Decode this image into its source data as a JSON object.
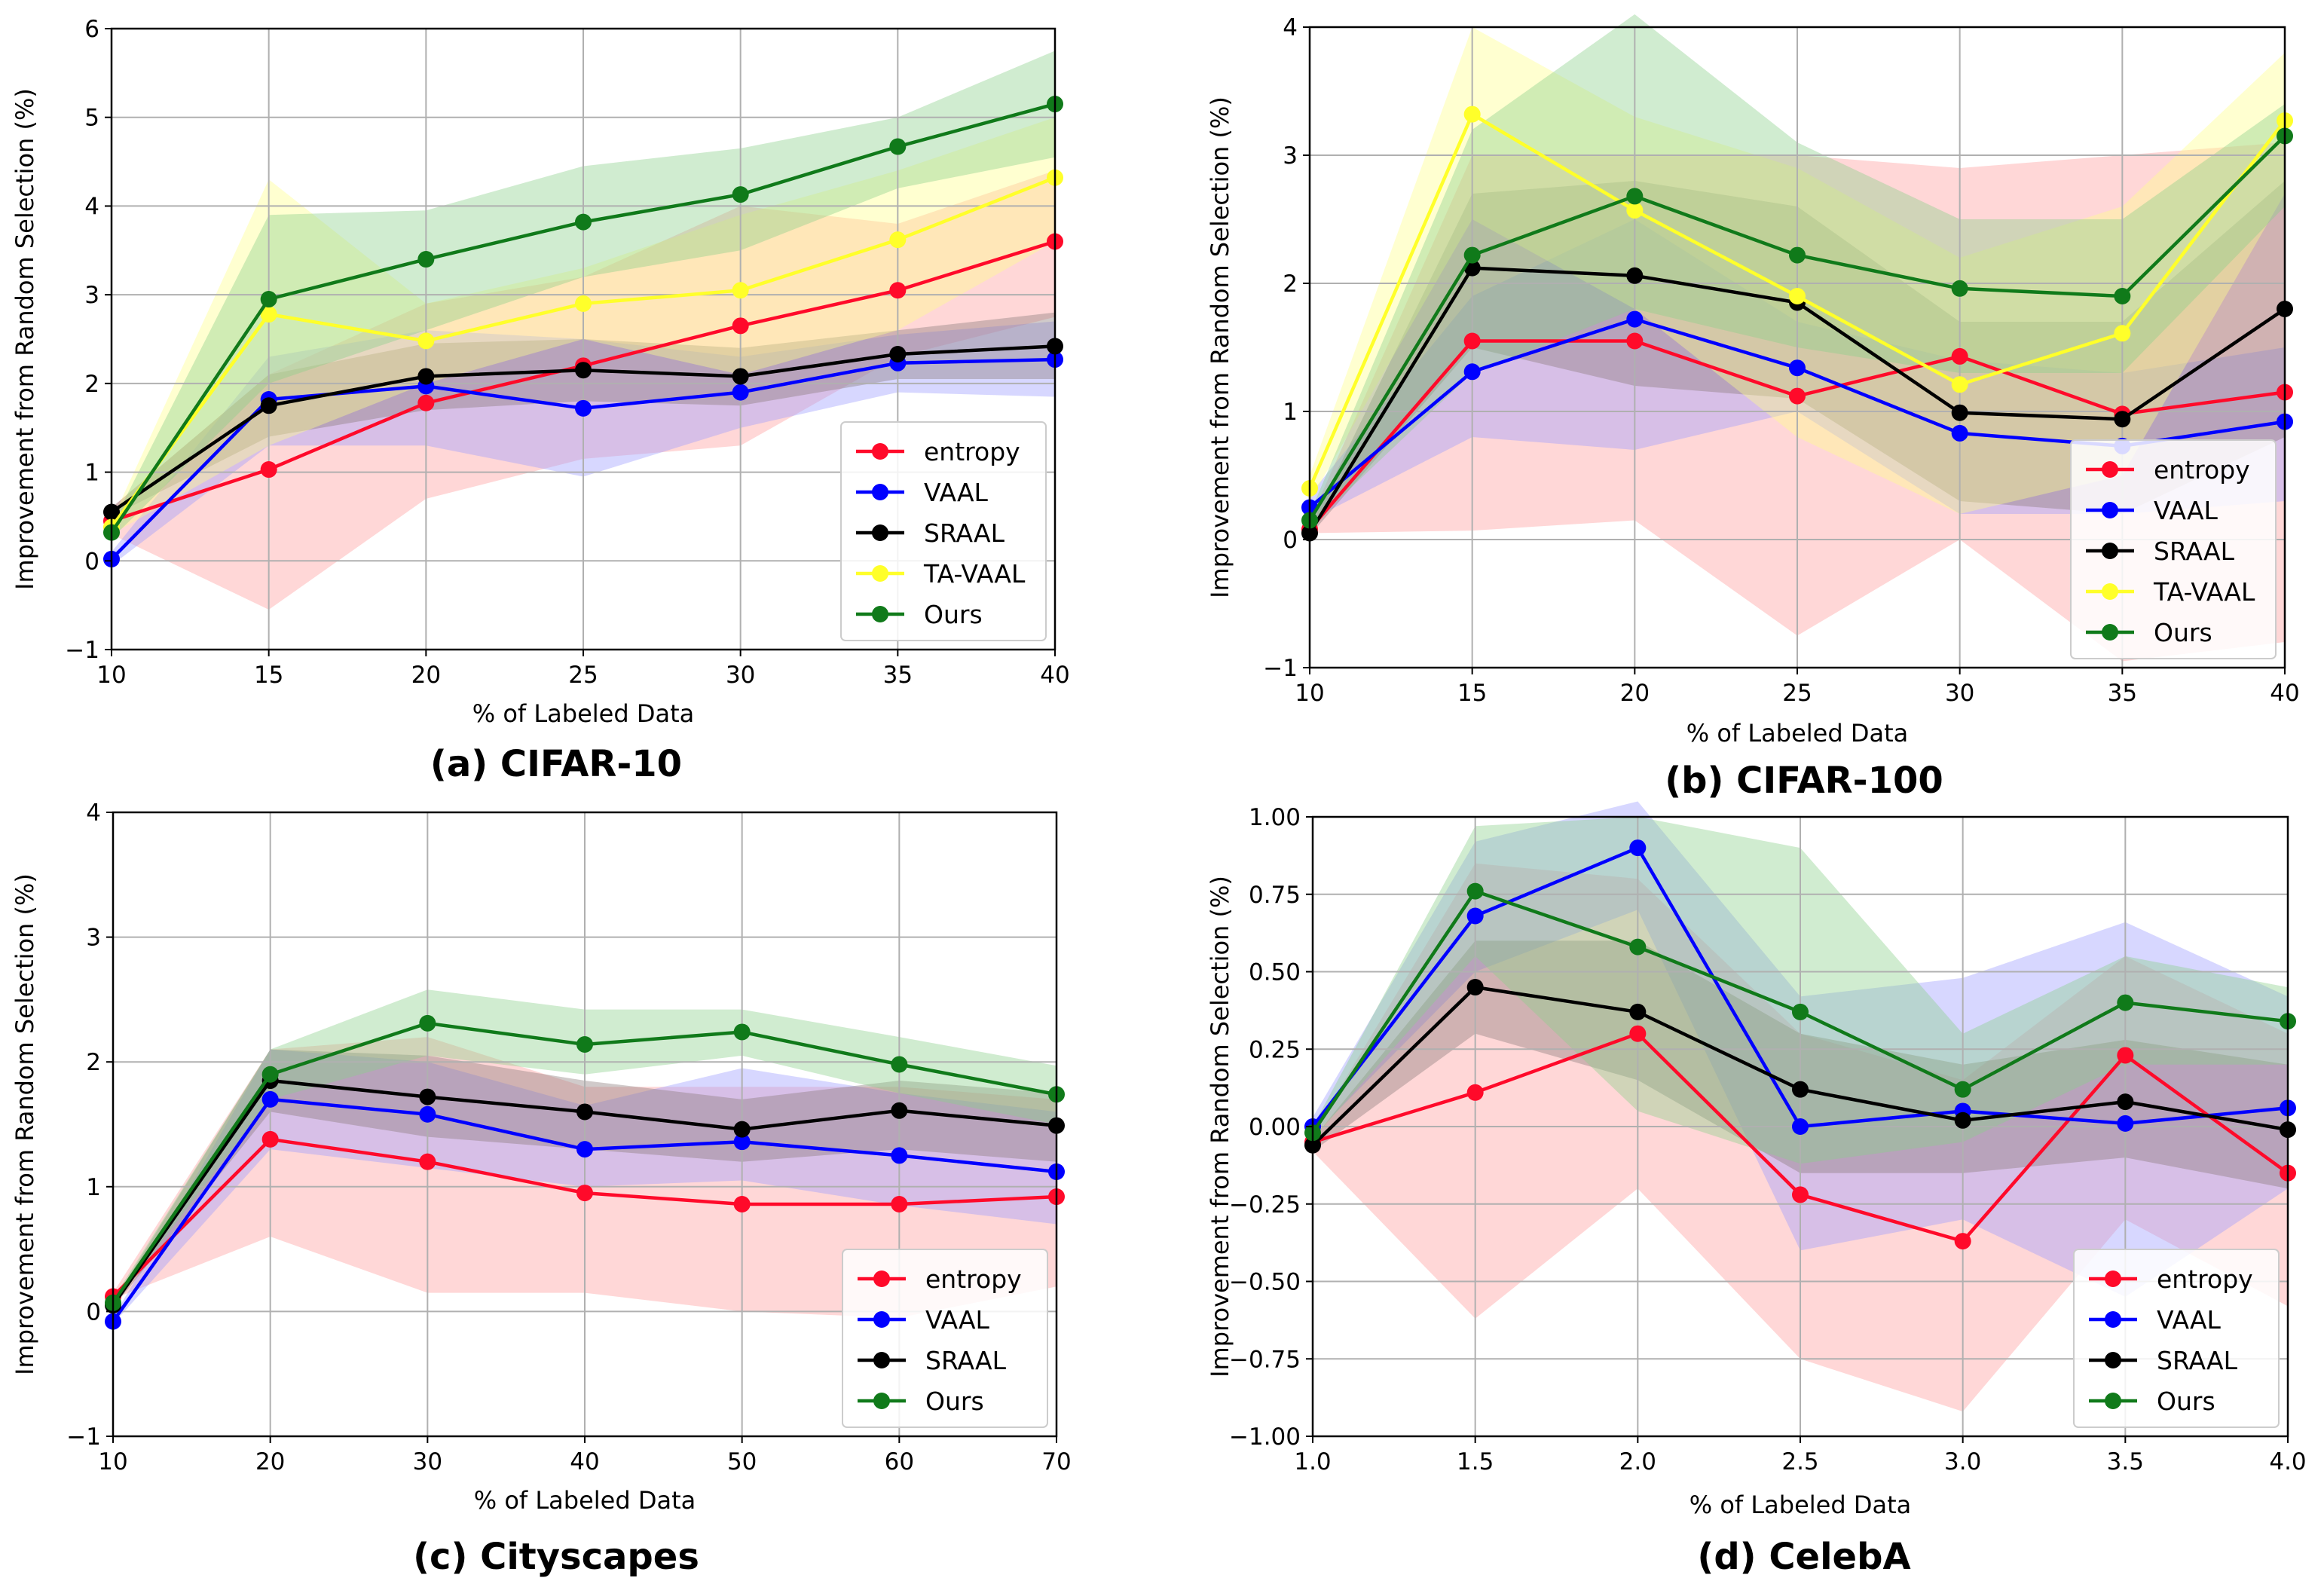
{
  "chart_data": [
    {
      "type": "line",
      "caption": "(a) CIFAR-10",
      "xlabel": "% of Labeled Data",
      "ylabel": "Improvement from Random Selection (%)",
      "x": [
        10,
        15,
        20,
        25,
        30,
        35,
        40
      ],
      "x_ticks": [
        "10",
        "15",
        "20",
        "25",
        "30",
        "35",
        "40"
      ],
      "xlim": [
        10,
        40
      ],
      "y_ticks": [
        "−1",
        "0",
        "1",
        "2",
        "3",
        "4",
        "5",
        "6"
      ],
      "ylim": [
        -1,
        6
      ],
      "grid": true,
      "legend_position": "lower-right",
      "series": [
        {
          "name": "entropy",
          "color": "#ff0a2a",
          "band_color": "#ff9a9a",
          "values": [
            0.45,
            1.03,
            1.78,
            2.2,
            2.65,
            3.05,
            3.6
          ],
          "lower": [
            0.3,
            -0.55,
            0.7,
            1.15,
            1.3,
            2.3,
            2.75
          ],
          "upper": [
            0.6,
            2.1,
            2.9,
            3.2,
            4.0,
            3.8,
            4.4
          ]
        },
        {
          "name": "VAAL",
          "color": "#0000ff",
          "band_color": "#9a9aff",
          "values": [
            0.02,
            1.82,
            1.97,
            1.72,
            1.9,
            2.23,
            2.27
          ],
          "lower": [
            -0.05,
            1.3,
            1.3,
            0.95,
            1.5,
            1.9,
            1.85
          ],
          "upper": [
            0.1,
            2.3,
            2.6,
            2.5,
            2.3,
            2.55,
            2.7
          ]
        },
        {
          "name": "SRAAL",
          "color": "#000000",
          "band_color": "#8a7a7a",
          "values": [
            0.55,
            1.75,
            2.08,
            2.15,
            2.08,
            2.33,
            2.42
          ],
          "lower": [
            0.5,
            1.4,
            1.7,
            1.8,
            1.75,
            2.05,
            2.05
          ],
          "upper": [
            0.6,
            2.1,
            2.45,
            2.5,
            2.4,
            2.6,
            2.8
          ]
        },
        {
          "name": "TA-VAAL",
          "color": "#ffff2a",
          "band_color": "#ffff8a",
          "values": [
            0.38,
            2.78,
            2.48,
            2.9,
            3.05,
            3.62,
            4.32
          ],
          "lower": [
            0.3,
            1.3,
            2.0,
            2.5,
            2.1,
            2.6,
            3.6
          ],
          "upper": [
            0.45,
            4.3,
            2.9,
            3.3,
            3.9,
            4.4,
            5.0
          ]
        },
        {
          "name": "Ours",
          "color": "#107a1a",
          "band_color": "#8ad08a",
          "values": [
            0.32,
            2.95,
            3.4,
            3.82,
            4.13,
            4.67,
            5.15
          ],
          "lower": [
            0.25,
            2.0,
            2.6,
            3.2,
            3.5,
            4.2,
            4.55
          ],
          "upper": [
            0.4,
            3.9,
            3.95,
            4.45,
            4.65,
            5.0,
            5.75
          ]
        }
      ]
    },
    {
      "type": "line",
      "caption": "(b) CIFAR-100",
      "xlabel": "% of Labeled Data",
      "ylabel": "Improvement from Random Selection (%)",
      "x": [
        10,
        15,
        20,
        25,
        30,
        35,
        40
      ],
      "x_ticks": [
        "10",
        "15",
        "20",
        "25",
        "30",
        "35",
        "40"
      ],
      "xlim": [
        10,
        40
      ],
      "y_ticks": [
        "−1",
        "0",
        "1",
        "2",
        "3",
        "4"
      ],
      "ylim": [
        -1,
        4
      ],
      "grid": true,
      "legend_position": "lower-right",
      "series": [
        {
          "name": "entropy",
          "color": "#ff0a2a",
          "band_color": "#ff9a9a",
          "values": [
            0.08,
            1.55,
            1.55,
            1.12,
            1.43,
            0.98,
            1.15
          ],
          "lower": [
            0.05,
            0.07,
            0.15,
            -0.75,
            0.0,
            -0.95,
            -0.8
          ],
          "upper": [
            0.15,
            3.0,
            3.0,
            3.0,
            2.9,
            3.0,
            3.1
          ]
        },
        {
          "name": "VAAL",
          "color": "#0000ff",
          "band_color": "#9a9aff",
          "values": [
            0.25,
            1.31,
            1.72,
            1.34,
            0.83,
            0.73,
            0.92
          ],
          "lower": [
            0.15,
            0.8,
            0.7,
            1.0,
            0.2,
            0.2,
            0.3
          ],
          "upper": [
            0.35,
            1.9,
            2.5,
            1.7,
            1.4,
            1.3,
            1.5
          ]
        },
        {
          "name": "SRAAL",
          "color": "#000000",
          "band_color": "#8a7a7a",
          "values": [
            0.05,
            2.12,
            2.06,
            1.85,
            0.99,
            0.94,
            1.8
          ],
          "lower": [
            0.03,
            1.5,
            1.2,
            1.1,
            0.3,
            0.2,
            0.8
          ],
          "upper": [
            0.1,
            2.7,
            2.8,
            2.6,
            1.7,
            1.7,
            2.8
          ]
        },
        {
          "name": "TA-VAAL",
          "color": "#ffff2a",
          "band_color": "#ffff8a",
          "values": [
            0.4,
            3.32,
            2.57,
            1.9,
            1.21,
            1.61,
            3.27
          ],
          "lower": [
            0.3,
            2.5,
            1.8,
            0.8,
            0.2,
            0.5,
            2.7
          ],
          "upper": [
            0.5,
            4.0,
            3.3,
            2.9,
            2.2,
            2.6,
            3.8
          ]
        },
        {
          "name": "Ours",
          "color": "#107a1a",
          "band_color": "#8ad08a",
          "values": [
            0.15,
            2.22,
            2.68,
            2.22,
            1.96,
            1.9,
            3.15
          ],
          "lower": [
            0.1,
            1.3,
            1.8,
            1.5,
            1.3,
            1.3,
            2.6
          ],
          "upper": [
            0.2,
            3.2,
            4.1,
            3.1,
            2.5,
            2.5,
            3.4
          ]
        }
      ]
    },
    {
      "type": "line",
      "caption": "(c) Cityscapes",
      "xlabel": "% of Labeled Data",
      "ylabel": "Improvement from Random Selection (%)",
      "x": [
        10,
        20,
        30,
        40,
        50,
        60,
        70
      ],
      "x_ticks": [
        "10",
        "20",
        "30",
        "40",
        "50",
        "60",
        "70"
      ],
      "xlim": [
        10,
        70
      ],
      "y_ticks": [
        "−1",
        "0",
        "1",
        "2",
        "3",
        "4"
      ],
      "ylim": [
        -1,
        4
      ],
      "grid": true,
      "legend_position": "lower-right",
      "series": [
        {
          "name": "entropy",
          "color": "#ff0a2a",
          "band_color": "#ff9a9a",
          "values": [
            0.12,
            1.38,
            1.2,
            0.95,
            0.86,
            0.86,
            0.92
          ],
          "lower": [
            0.1,
            0.6,
            0.15,
            0.15,
            0.0,
            -0.05,
            0.2
          ],
          "upper": [
            0.15,
            2.1,
            2.2,
            1.8,
            1.8,
            1.8,
            1.7
          ]
        },
        {
          "name": "VAAL",
          "color": "#0000ff",
          "band_color": "#9a9aff",
          "values": [
            -0.08,
            1.7,
            1.58,
            1.3,
            1.36,
            1.25,
            1.12
          ],
          "lower": [
            -0.1,
            1.3,
            1.15,
            1.0,
            1.05,
            0.85,
            0.7
          ],
          "upper": [
            -0.05,
            2.1,
            2.0,
            1.65,
            1.95,
            1.75,
            1.6
          ]
        },
        {
          "name": "SRAAL",
          "color": "#000000",
          "band_color": "#8a7a7a",
          "values": [
            0.05,
            1.85,
            1.72,
            1.6,
            1.46,
            1.61,
            1.49
          ],
          "lower": [
            0.03,
            1.6,
            1.4,
            1.3,
            1.2,
            1.3,
            1.2
          ],
          "upper": [
            0.08,
            2.1,
            2.05,
            1.85,
            1.7,
            1.85,
            1.75
          ]
        },
        {
          "name": "Ours",
          "color": "#107a1a",
          "band_color": "#8ad08a",
          "values": [
            0.07,
            1.9,
            2.31,
            2.14,
            2.24,
            1.98,
            1.74
          ],
          "lower": [
            0.05,
            1.7,
            2.05,
            1.9,
            2.05,
            1.75,
            1.5
          ],
          "upper": [
            0.1,
            2.1,
            2.58,
            2.42,
            2.42,
            2.2,
            1.97
          ]
        }
      ]
    },
    {
      "type": "line",
      "caption": "(d) CelebA",
      "xlabel": "% of Labeled Data",
      "ylabel": "Improvement from Random Selection (%)",
      "x": [
        1.0,
        1.5,
        2.0,
        2.5,
        3.0,
        3.5,
        4.0
      ],
      "x_ticks": [
        "1.0",
        "1.5",
        "2.0",
        "2.5",
        "3.0",
        "3.5",
        "4.0"
      ],
      "xlim": [
        1.0,
        4.0
      ],
      "y_ticks": [
        "−1.00",
        "−0.75",
        "−0.50",
        "−0.25",
        "0.00",
        "0.25",
        "0.50",
        "0.75",
        "1.00"
      ],
      "ylim": [
        -1.0,
        1.0
      ],
      "grid": true,
      "legend_position": "lower-right",
      "series": [
        {
          "name": "entropy",
          "color": "#ff0a2a",
          "band_color": "#ff9a9a",
          "values": [
            -0.05,
            0.11,
            0.3,
            -0.22,
            -0.37,
            0.23,
            -0.15
          ],
          "lower": [
            -0.08,
            -0.62,
            -0.2,
            -0.75,
            -0.92,
            -0.3,
            -0.58
          ],
          "upper": [
            -0.02,
            0.85,
            0.8,
            0.3,
            0.15,
            0.55,
            0.3
          ]
        },
        {
          "name": "VAAL",
          "color": "#0000ff",
          "band_color": "#9a9aff",
          "values": [
            0.0,
            0.68,
            0.9,
            0.0,
            0.05,
            0.01,
            0.06
          ],
          "lower": [
            -0.03,
            0.5,
            0.7,
            -0.4,
            -0.3,
            -0.55,
            -0.2
          ],
          "upper": [
            0.03,
            0.92,
            1.05,
            0.42,
            0.48,
            0.66,
            0.42
          ]
        },
        {
          "name": "SRAAL",
          "color": "#000000",
          "band_color": "#8a7a7a",
          "values": [
            -0.06,
            0.45,
            0.37,
            0.12,
            0.02,
            0.08,
            -0.01
          ],
          "lower": [
            -0.08,
            0.3,
            0.15,
            -0.15,
            -0.15,
            -0.1,
            -0.2
          ],
          "upper": [
            -0.04,
            0.6,
            0.6,
            0.3,
            0.2,
            0.28,
            0.2
          ]
        },
        {
          "name": "Ours",
          "color": "#107a1a",
          "band_color": "#8ad08a",
          "values": [
            -0.02,
            0.76,
            0.58,
            0.37,
            0.12,
            0.4,
            0.34
          ],
          "lower": [
            -0.04,
            0.55,
            0.05,
            -0.12,
            -0.05,
            0.2,
            0.2
          ],
          "upper": [
            0.0,
            0.97,
            1.0,
            0.9,
            0.3,
            0.55,
            0.45
          ]
        }
      ]
    }
  ]
}
